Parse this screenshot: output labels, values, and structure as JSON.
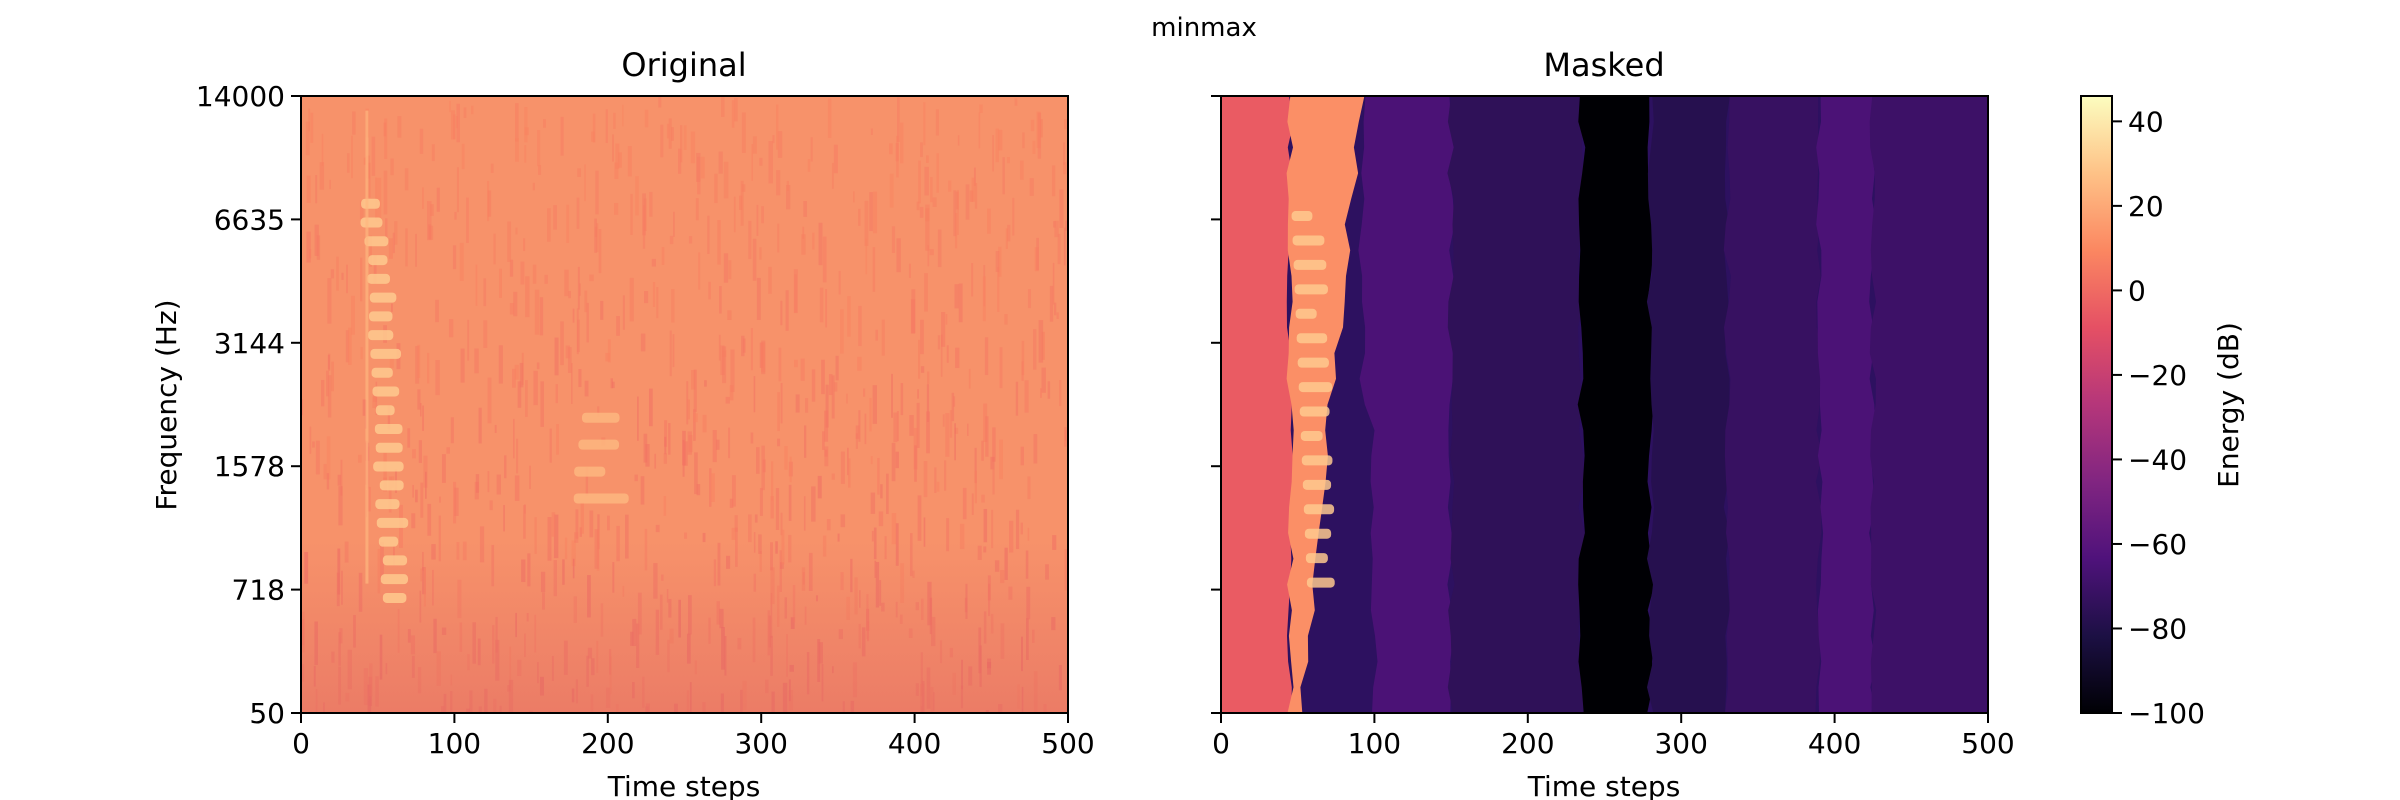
{
  "figure": {
    "suptitle": "minmax"
  },
  "chart_data": [
    {
      "type": "heatmap",
      "title": "Original",
      "xlabel": "Time steps",
      "ylabel": "Frequency (Hz)",
      "xlim": [
        0,
        500
      ],
      "x_ticks": [
        0,
        100,
        200,
        300,
        400,
        500
      ],
      "y_ticks": [
        "50",
        "718",
        "1578",
        "3144",
        "6635",
        "14000"
      ],
      "y_scale": "mel",
      "colormap": "magma",
      "background_level_db": 10,
      "features": [
        {
          "t_range": [
            38,
            72
          ],
          "freq_range": [
            600,
            8000
          ],
          "level_db": 30,
          "shape": "harmonic stack"
        },
        {
          "t_range": [
            175,
            212
          ],
          "freq_range": [
            1400,
            2400
          ],
          "level_db": 24,
          "shape": "harmonic chirp"
        }
      ]
    },
    {
      "type": "heatmap",
      "title": "Masked",
      "xlabel": "Time steps",
      "xlim": [
        0,
        500
      ],
      "x_ticks": [
        0,
        100,
        200,
        300,
        400,
        500
      ],
      "y_ticks": [
        "50",
        "718",
        "1578",
        "3144",
        "6635",
        "14000"
      ],
      "y_scale": "mel",
      "colormap": "magma",
      "regions": [
        {
          "t_range": [
            0,
            45
          ],
          "level_db": -5
        },
        {
          "t_range": [
            45,
            92
          ],
          "level_db": 12
        },
        {
          "t_range": [
            92,
            150
          ],
          "level_db": -65
        },
        {
          "t_range": [
            150,
            235
          ],
          "level_db": -75
        },
        {
          "t_range": [
            235,
            280
          ],
          "level_db": -100
        },
        {
          "t_range": [
            280,
            330
          ],
          "level_db": -78
        },
        {
          "t_range": [
            330,
            390
          ],
          "level_db": -72
        },
        {
          "t_range": [
            390,
            425
          ],
          "level_db": -65
        },
        {
          "t_range": [
            425,
            500
          ],
          "level_db": -70
        }
      ]
    }
  ],
  "colorbar": {
    "label": "Energy (dB)",
    "range": [
      -100,
      46
    ],
    "ticks": [
      "40",
      "20",
      "0",
      "−20",
      "−40",
      "−60",
      "−80",
      "−100"
    ],
    "tick_values": [
      40,
      20,
      0,
      -20,
      -40,
      -60,
      -80,
      -100
    ]
  }
}
